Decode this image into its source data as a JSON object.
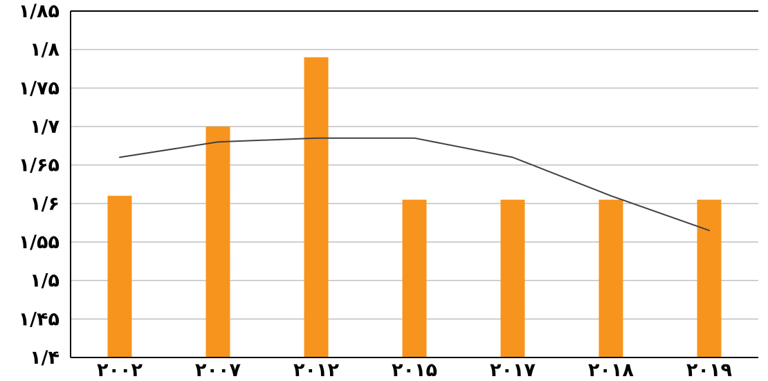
{
  "chart_data": {
    "type": "bar",
    "categories": [
      "۲۰۰۲",
      "۲۰۰۷",
      "۲۰۱۲",
      "۲۰۱۵",
      "۲۰۱۷",
      "۲۰۱۸",
      "۲۰۱۹"
    ],
    "series": [
      {
        "type": "bar",
        "color": "#F7941D",
        "values": [
          1.61,
          1.7,
          1.79,
          1.605,
          1.605,
          1.605,
          1.605
        ]
      },
      {
        "type": "line",
        "color": "#404040",
        "values": [
          1.66,
          1.68,
          1.685,
          1.685,
          1.66,
          1.61,
          1.565
        ]
      }
    ],
    "ylim": [
      1.4,
      1.85
    ],
    "yticks": [
      1.4,
      1.45,
      1.5,
      1.55,
      1.6,
      1.65,
      1.7,
      1.75,
      1.8,
      1.85
    ],
    "ytick_labels": [
      "۱/۴",
      "۱/۴۵",
      "۱/۵",
      "۱/۵۵",
      "۱/۶",
      "۱/۶۵",
      "۱/۷",
      "۱/۷۵",
      "۱/۸",
      "۱/۸۵"
    ],
    "title": "",
    "xlabel": "",
    "ylabel": "",
    "grid": true,
    "gridColor": "#BFBFBF",
    "axisColor": "#000000"
  }
}
